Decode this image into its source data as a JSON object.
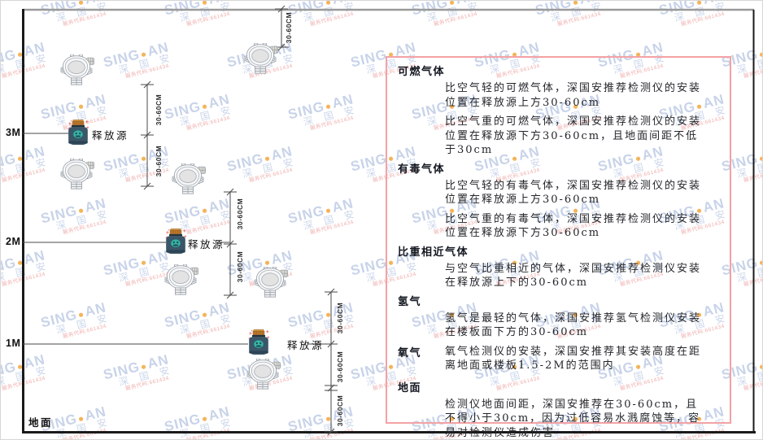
{
  "watermark": {
    "brand_left": "SING",
    "brand_right": "AN",
    "dot": "●",
    "cn": "深 国 安",
    "code": "服务代码:661434"
  },
  "diagram": {
    "axis_labels": [
      "3M",
      "2M",
      "1M"
    ],
    "ground_label": "地面",
    "release_label": "释放源",
    "dim_label": "30-60CM"
  },
  "panel": {
    "sections": [
      {
        "heading": "可燃气体",
        "inline": false,
        "paragraphs": [
          "比空气轻的可燃气体，深国安推荐检测仪的安装位置在释放源上方30-60cm",
          "比空气重的可燃气体，深国安推荐检测仪的安装位置在释放源下方30-60cm，且地面间距不低于30cm"
        ]
      },
      {
        "heading": "有毒气体",
        "inline": false,
        "paragraphs": [
          "比空气轻的有毒气体，深国安推荐检测仪的安装位置在释放源上方30-60cm",
          "比空气重的有毒气体，深国安推荐检测仪的安装位置在释放源下方30-60cm"
        ]
      },
      {
        "heading": "比重相近气体",
        "inline": false,
        "paragraphs": [
          "与空气比重相近的气体，深国安推荐检测仪安装在释放源上下的30-60cm"
        ]
      },
      {
        "heading": "氢气",
        "inline": false,
        "paragraphs": [
          "氢气是最轻的气体，深国安推荐氢气检测仪安装在楼板面下方的30-60cm"
        ]
      },
      {
        "heading": "氧气",
        "inline": true,
        "paragraphs": [
          "氧气检测仪的安装，深国安推荐其安装高度在距离地面或楼板1.5-2M的范围内"
        ]
      },
      {
        "heading": "地面",
        "inline": false,
        "paragraphs": [
          "检测仪地面间距，深国安推荐在30-60cm，且不得小于30cm，因为过低容易水溅腐蚀等，容易对检测仪造成伤害"
        ]
      }
    ]
  },
  "colors": {
    "panel_border": "#f4a2a4",
    "wall": "#1a1a1a",
    "ceiling": "#9a9a9a",
    "dim_line": "#4a4a4a",
    "watermark_blue": "#7692c8",
    "watermark_dot": "#f2a73e",
    "release_body": "#3b5668",
    "release_cap": "#c07a2e",
    "release_emblem": "#38b2a5",
    "detector_stroke": "#9aa2ab",
    "sparkle_red": "#e86a6a"
  }
}
